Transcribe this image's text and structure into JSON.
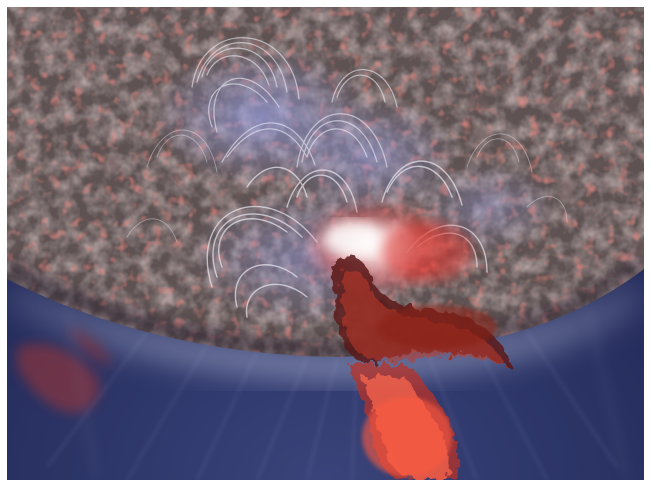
{
  "image": {
    "subject": "solar-flare-eruption",
    "colors": {
      "space": "#2c3463",
      "space_deep": "#1c2350",
      "surface_base": "#5a4e4e",
      "surface_texture_light": "#a89c9a",
      "surface_texture_dark": "#3a302f",
      "loops": "#e8ecf6",
      "loop_glow": "#b8bde8",
      "plasma_red": "#d43a2e",
      "plasma_dark": "#4a1410",
      "plasma_bright": "#ff6a4e",
      "flare_core": "#ffffff",
      "limb_glow": "#8fa0d8"
    }
  }
}
